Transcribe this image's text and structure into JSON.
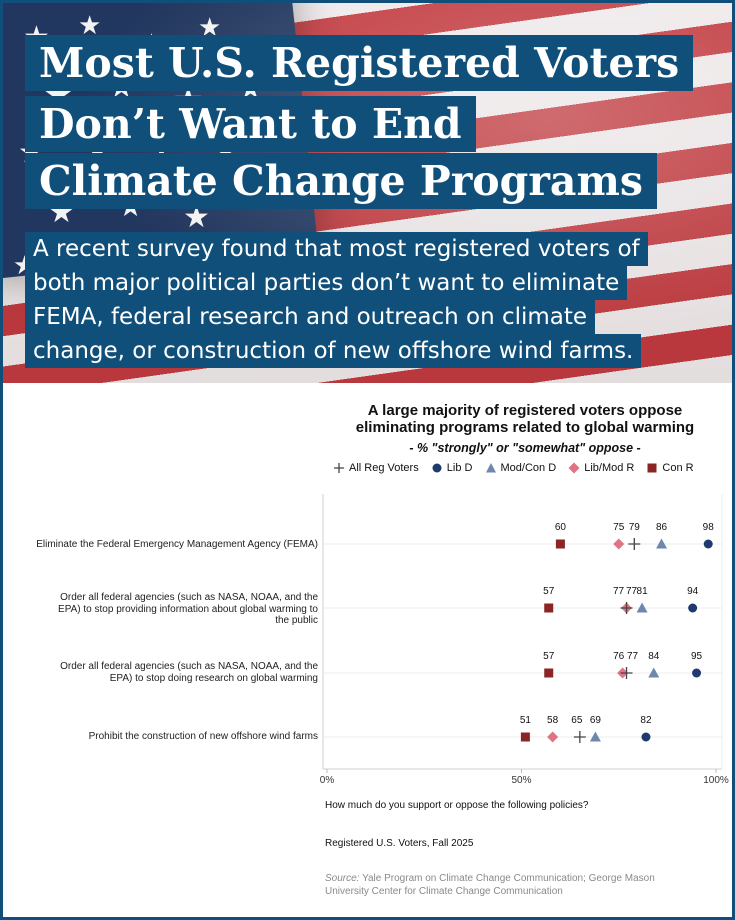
{
  "header": {
    "title_lines": [
      "Most U.S. Registered Voters",
      "Don’t Want to End",
      "Climate Change Programs"
    ],
    "subtitle_lines": [
      "A recent survey found that most registered voters of",
      "both major political parties don’t want to eliminate",
      "FEMA,  federal research and outreach on climate",
      "change, or construction of new offshore wind farms."
    ]
  },
  "chart_data": {
    "type": "scatter",
    "title_lines": [
      "A large majority of registered voters oppose",
      "eliminating programs related to global warming"
    ],
    "subtitle": "- % \"strongly\" or \"somewhat\" oppose -",
    "xlim": [
      0,
      100
    ],
    "x_ticks": [
      "0%",
      "50%",
      "100%"
    ],
    "legend_position": "top",
    "grid": "horizontal",
    "categories": [
      [
        "Eliminate the Federal Emergency Management Agency (FEMA)"
      ],
      [
        "Order all federal agencies (such as NASA, NOAA, and the",
        "EPA) to stop providing information about global warming to",
        "the public"
      ],
      [
        "Order all federal agencies (such as NASA, NOAA, and the",
        "EPA) to stop doing research on global warming"
      ],
      [
        "Prohibit the construction of new offshore wind farms"
      ]
    ],
    "series": [
      {
        "name": "All Reg Voters",
        "marker": "plus",
        "color": "#444444",
        "values": [
          79,
          77,
          77,
          65
        ]
      },
      {
        "name": "Lib D",
        "marker": "circle",
        "color": "#1f3a6e",
        "values": [
          98,
          94,
          95,
          82
        ]
      },
      {
        "name": "Mod/Con D",
        "marker": "triangle",
        "color": "#6d87ad",
        "values": [
          86,
          81,
          84,
          69
        ]
      },
      {
        "name": "Lib/Mod R",
        "marker": "diamond",
        "color": "#e07485",
        "values": [
          75,
          77,
          76,
          58
        ]
      },
      {
        "name": "Con R",
        "marker": "square",
        "color": "#8b2525",
        "values": [
          60,
          57,
          57,
          51
        ]
      }
    ]
  },
  "footer": {
    "question": "How much do you support or oppose the following policies?",
    "population": "Registered U.S. Voters, Fall 2025",
    "source_label": "Source:",
    "source_text": " Yale Program on Climate Change Communication; George Mason University Center for Climate Change Communication"
  }
}
